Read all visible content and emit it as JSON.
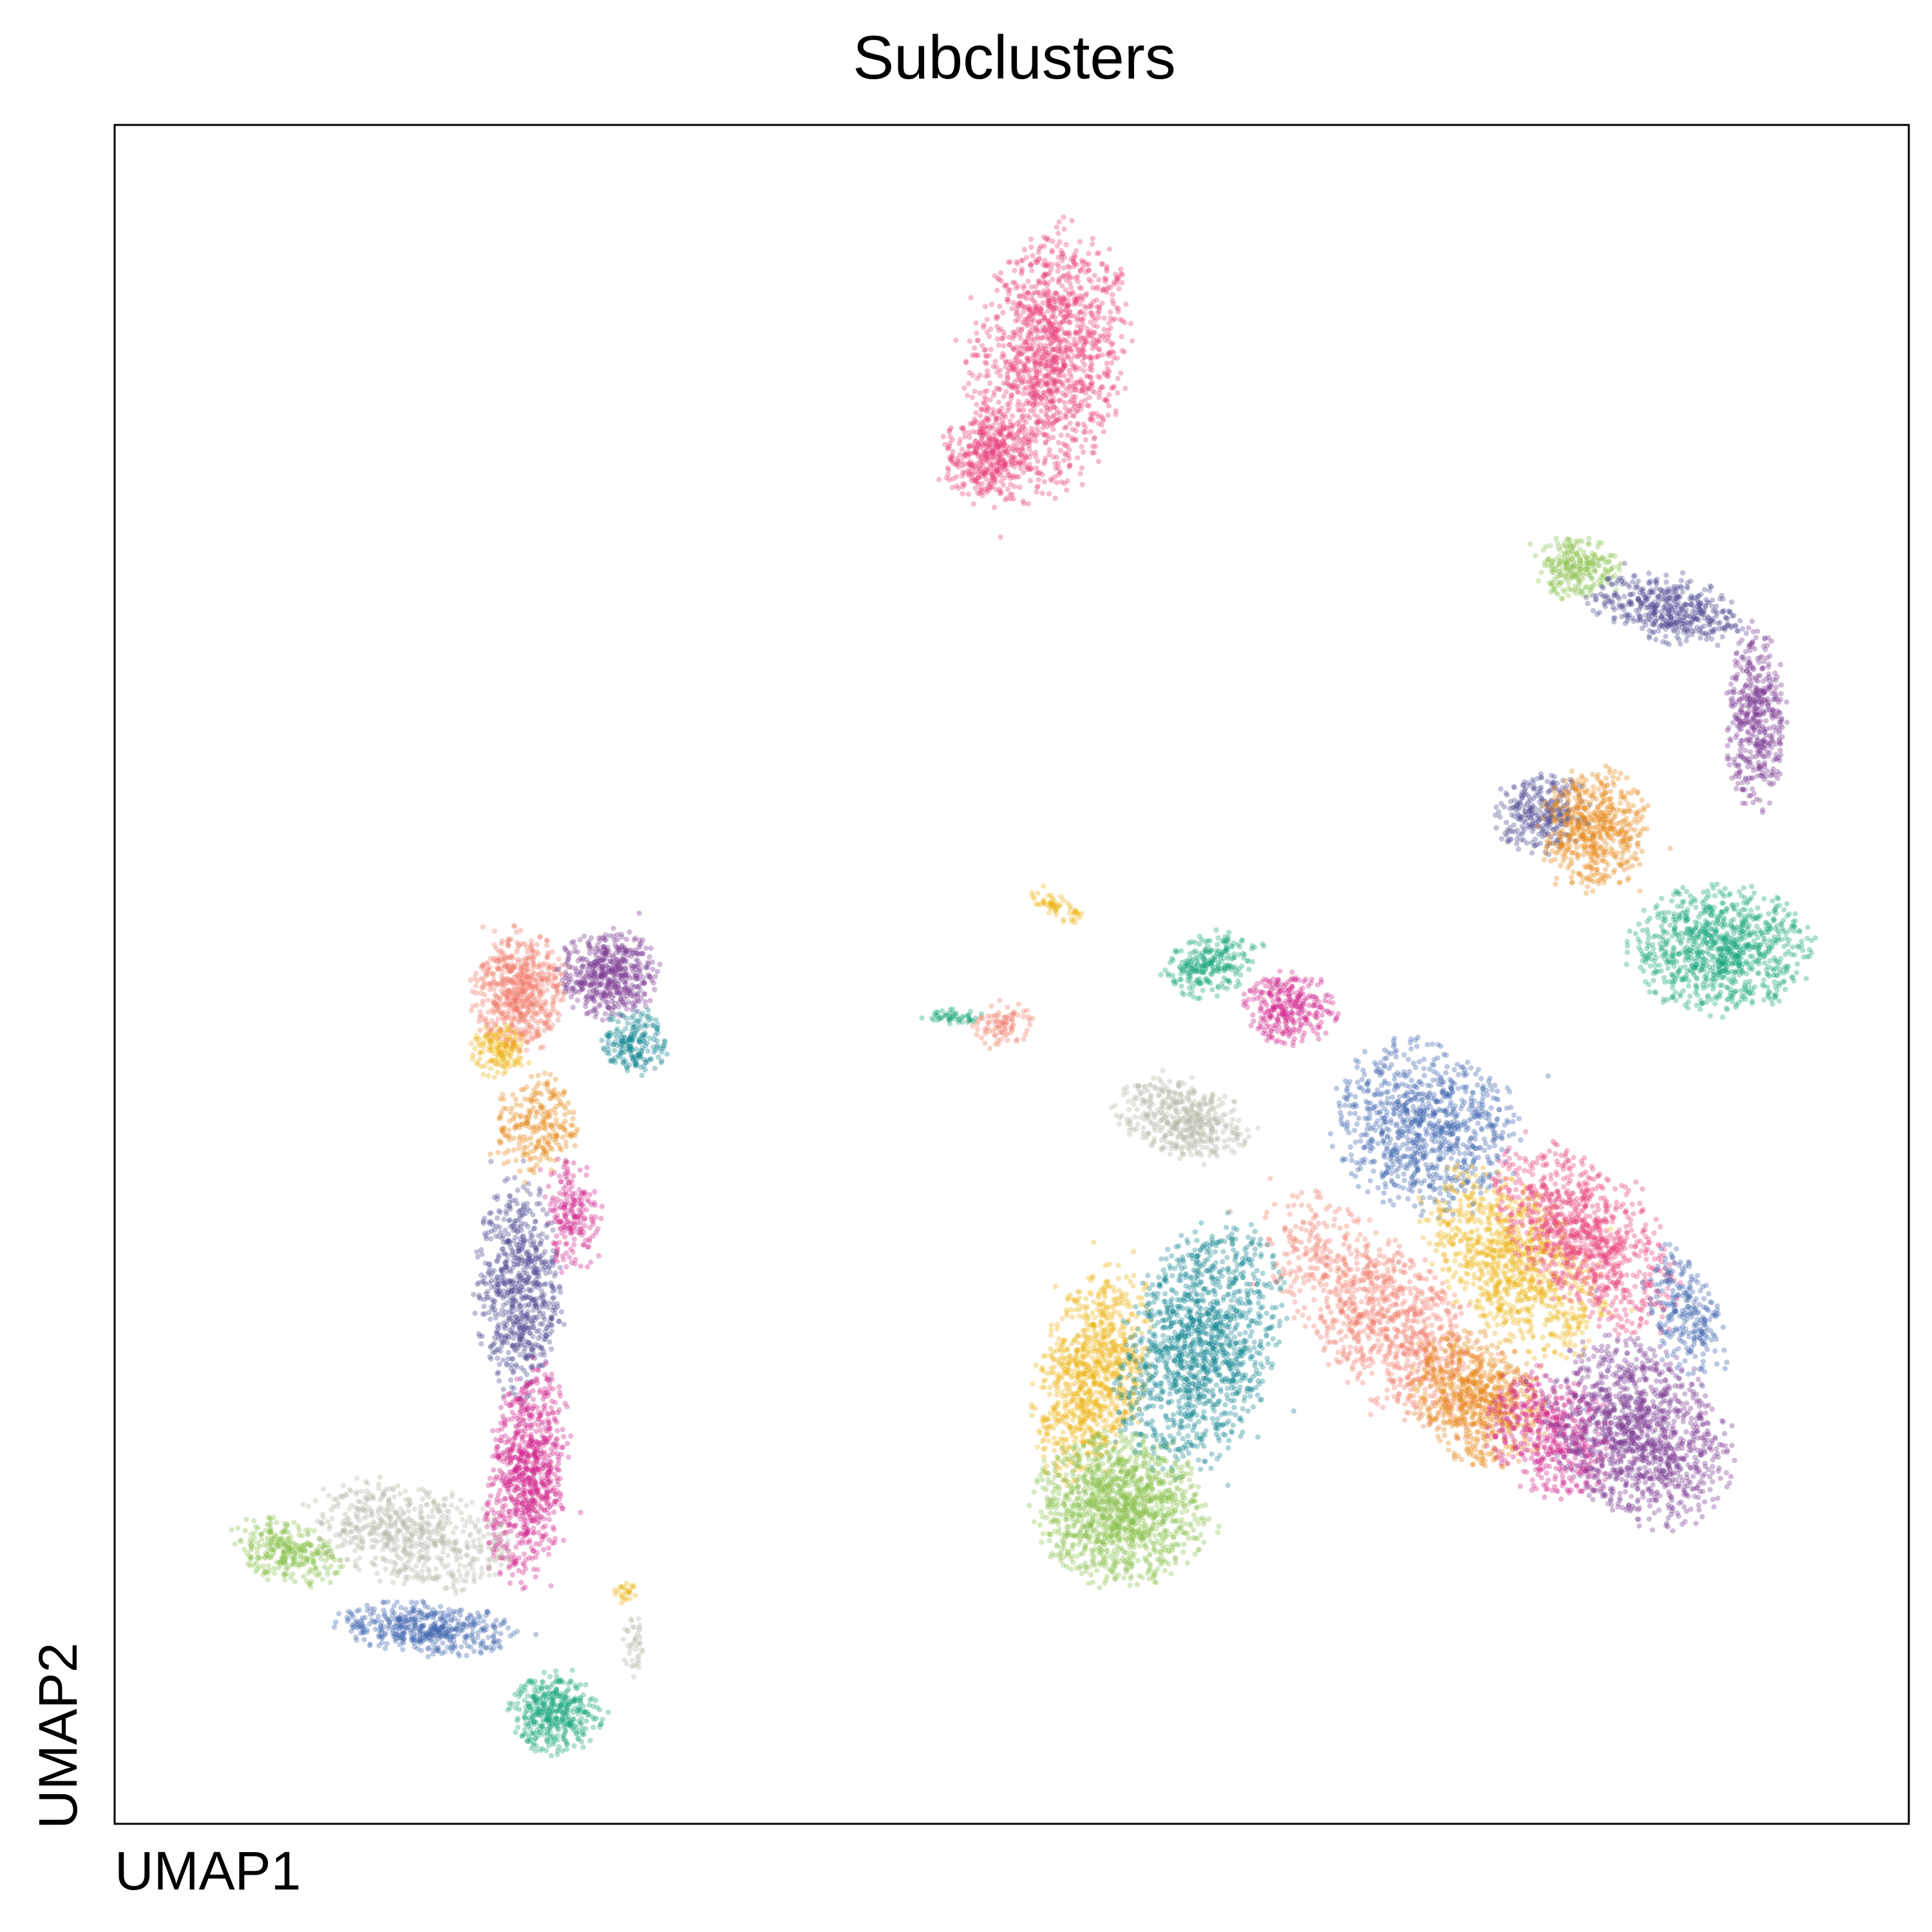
{
  "chart_data": {
    "type": "scatter",
    "title": "Subclusters",
    "xlabel": "UMAP1",
    "ylabel": "UMAP2",
    "xlim": [
      0,
      100
    ],
    "ylim": [
      0,
      100
    ],
    "grid": false,
    "legend": "none",
    "ticks": false,
    "point_alpha": 0.35,
    "palette": {
      "pink": "#e8407a",
      "magenta": "#d2268c",
      "green": "#8dc350",
      "teal": "#1aa57a",
      "darkteal": "#138891",
      "blue": "#3f63b0",
      "indigo": "#4c4a92",
      "purple": "#7b3a91",
      "orange": "#e88a1a",
      "yellow": "#efb416",
      "salmon": "#f07a6a",
      "gray": "#b8b8a8"
    },
    "clusters": [
      {
        "color": "pink",
        "cx": 52,
        "cy": 86,
        "rx": 4.0,
        "ry": 7.5,
        "angle": -10,
        "n": 1400
      },
      {
        "color": "pink",
        "cx": 48.5,
        "cy": 80.5,
        "rx": 2.2,
        "ry": 2.6,
        "angle": 0,
        "n": 350
      },
      {
        "color": "green",
        "cx": 81.5,
        "cy": 74,
        "rx": 2.2,
        "ry": 1.8,
        "angle": 0,
        "n": 250
      },
      {
        "color": "indigo",
        "cx": 86.5,
        "cy": 71.5,
        "rx": 4.0,
        "ry": 1.8,
        "angle": -10,
        "n": 450
      },
      {
        "color": "purple",
        "cx": 91.5,
        "cy": 65,
        "rx": 1.6,
        "ry": 5.0,
        "angle": 0,
        "n": 450
      },
      {
        "color": "indigo",
        "cx": 79.5,
        "cy": 59.5,
        "rx": 2.6,
        "ry": 2.2,
        "angle": 0,
        "n": 300
      },
      {
        "color": "orange",
        "cx": 82.5,
        "cy": 58.5,
        "rx": 2.8,
        "ry": 3.4,
        "angle": 0,
        "n": 550
      },
      {
        "color": "teal",
        "cx": 89.5,
        "cy": 51.5,
        "rx": 4.8,
        "ry": 3.4,
        "angle": 0,
        "n": 900
      },
      {
        "color": "teal",
        "cx": 61,
        "cy": 50.5,
        "rx": 2.6,
        "ry": 1.6,
        "angle": 20,
        "n": 250
      },
      {
        "color": "magenta",
        "cx": 65.5,
        "cy": 48,
        "rx": 2.4,
        "ry": 2.0,
        "angle": 0,
        "n": 300
      },
      {
        "color": "gray",
        "cx": 59.5,
        "cy": 41.5,
        "rx": 3.6,
        "ry": 2.2,
        "angle": -20,
        "n": 450
      },
      {
        "color": "yellow",
        "cx": 52.5,
        "cy": 54,
        "rx": 1.5,
        "ry": 0.6,
        "angle": -30,
        "n": 60
      },
      {
        "color": "salmon",
        "cx": 49.5,
        "cy": 47,
        "rx": 1.7,
        "ry": 1.3,
        "angle": 0,
        "n": 90
      },
      {
        "color": "teal",
        "cx": 46.5,
        "cy": 47.5,
        "rx": 1.8,
        "ry": 0.4,
        "angle": 0,
        "n": 50
      },
      {
        "color": "blue",
        "cx": 73,
        "cy": 41,
        "rx": 5.0,
        "ry": 4.5,
        "angle": -40,
        "n": 900
      },
      {
        "color": "salmon",
        "cx": 70.5,
        "cy": 30,
        "rx": 3.6,
        "ry": 8.0,
        "angle": 40,
        "n": 1000
      },
      {
        "color": "orange",
        "cx": 76,
        "cy": 25,
        "rx": 3.2,
        "ry": 4.0,
        "angle": 40,
        "n": 700
      },
      {
        "color": "yellow",
        "cx": 78,
        "cy": 33,
        "rx": 3.6,
        "ry": 6.0,
        "angle": 40,
        "n": 900
      },
      {
        "color": "pink",
        "cx": 82,
        "cy": 34.5,
        "rx": 3.4,
        "ry": 6.0,
        "angle": 40,
        "n": 900
      },
      {
        "color": "magenta",
        "cx": 80,
        "cy": 23,
        "rx": 3.0,
        "ry": 4.0,
        "angle": 40,
        "n": 500
      },
      {
        "color": "purple",
        "cx": 85,
        "cy": 23,
        "rx": 4.2,
        "ry": 5.5,
        "angle": 35,
        "n": 1200
      },
      {
        "color": "blue",
        "cx": 87.5,
        "cy": 30,
        "rx": 1.8,
        "ry": 4.0,
        "angle": 20,
        "n": 250
      },
      {
        "color": "yellow",
        "cx": 54.5,
        "cy": 26.5,
        "rx": 2.8,
        "ry": 6.0,
        "angle": -15,
        "n": 900
      },
      {
        "color": "darkteal",
        "cx": 60.5,
        "cy": 28,
        "rx": 4.0,
        "ry": 7.0,
        "angle": -15,
        "n": 1300
      },
      {
        "color": "green",
        "cx": 56,
        "cy": 18.5,
        "rx": 4.5,
        "ry": 4.0,
        "angle": -15,
        "n": 1300
      },
      {
        "color": "salmon",
        "cx": 22.5,
        "cy": 49,
        "rx": 2.4,
        "ry": 3.4,
        "angle": 0,
        "n": 600
      },
      {
        "color": "purple",
        "cx": 27.5,
        "cy": 50,
        "rx": 2.6,
        "ry": 2.4,
        "angle": 0,
        "n": 500
      },
      {
        "color": "darkteal",
        "cx": 29,
        "cy": 46,
        "rx": 1.8,
        "ry": 1.8,
        "angle": 0,
        "n": 200
      },
      {
        "color": "yellow",
        "cx": 21.5,
        "cy": 45.5,
        "rx": 1.5,
        "ry": 1.5,
        "angle": 0,
        "n": 150
      },
      {
        "color": "orange",
        "cx": 23.5,
        "cy": 41,
        "rx": 2.2,
        "ry": 3.0,
        "angle": 0,
        "n": 250
      },
      {
        "color": "magenta",
        "cx": 25.5,
        "cy": 36,
        "rx": 1.5,
        "ry": 3.4,
        "angle": 0,
        "n": 200
      },
      {
        "color": "indigo",
        "cx": 22.5,
        "cy": 31.5,
        "rx": 2.2,
        "ry": 6.0,
        "angle": 0,
        "n": 700
      },
      {
        "color": "magenta",
        "cx": 23,
        "cy": 20.5,
        "rx": 2.1,
        "ry": 6.0,
        "angle": -5,
        "n": 800
      },
      {
        "color": "gray",
        "cx": 16.5,
        "cy": 17,
        "rx": 5.5,
        "ry": 2.8,
        "angle": -15,
        "n": 600
      },
      {
        "color": "green",
        "cx": 9.5,
        "cy": 16,
        "rx": 3.0,
        "ry": 1.6,
        "angle": -20,
        "n": 300
      },
      {
        "color": "blue",
        "cx": 17.5,
        "cy": 11.5,
        "rx": 4.8,
        "ry": 1.4,
        "angle": -5,
        "n": 450
      },
      {
        "color": "teal",
        "cx": 24.5,
        "cy": 6.5,
        "rx": 2.4,
        "ry": 2.2,
        "angle": 0,
        "n": 400
      },
      {
        "color": "yellow",
        "cx": 28.5,
        "cy": 13.5,
        "rx": 0.6,
        "ry": 0.6,
        "angle": 0,
        "n": 25
      },
      {
        "color": "gray",
        "cx": 29,
        "cy": 10.5,
        "rx": 0.6,
        "ry": 1.8,
        "angle": 0,
        "n": 40
      }
    ]
  }
}
